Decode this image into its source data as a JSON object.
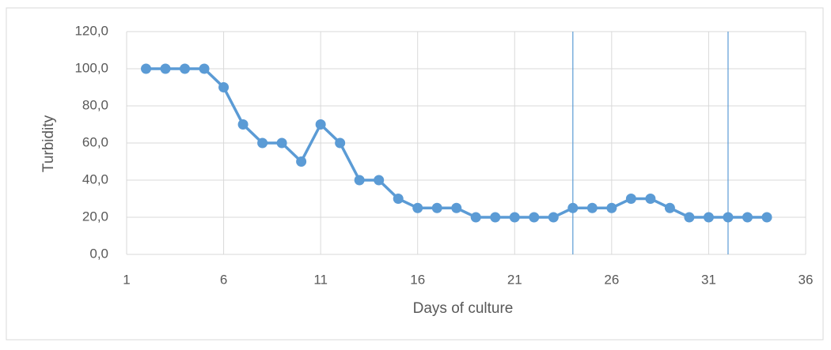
{
  "chart_data": {
    "type": "line",
    "xlabel": "Days of culture",
    "ylabel": "Turbidity",
    "x": [
      2,
      3,
      4,
      5,
      6,
      7,
      8,
      9,
      10,
      11,
      12,
      13,
      14,
      15,
      16,
      17,
      18,
      19,
      20,
      21,
      22,
      23,
      24,
      25,
      26,
      27,
      28,
      29,
      30,
      31,
      32,
      33,
      34
    ],
    "series": [
      {
        "name": "Turbidity",
        "color": "#5b9bd5",
        "values": [
          100,
          100,
          100,
          100,
          90,
          70,
          60,
          60,
          50,
          70,
          60,
          40,
          40,
          30,
          25,
          25,
          25,
          20,
          20,
          20,
          20,
          20,
          25,
          25,
          25,
          30,
          30,
          25,
          20,
          20,
          20,
          20,
          20
        ]
      }
    ],
    "xlim": [
      1,
      36
    ],
    "xticks": [
      1,
      6,
      11,
      16,
      21,
      26,
      31,
      36
    ],
    "ylim": [
      0,
      120
    ],
    "yticks": [
      {
        "value": 0,
        "label": "0,0"
      },
      {
        "value": 20,
        "label": "20,0"
      },
      {
        "value": 40,
        "label": "40,0"
      },
      {
        "value": 60,
        "label": "60,0"
      },
      {
        "value": 80,
        "label": "80,0"
      },
      {
        "value": 100,
        "label": "100,0"
      },
      {
        "value": 120,
        "label": "120,0"
      }
    ],
    "vlines": [
      24,
      32
    ],
    "vline_color": "#5b9bd5",
    "grid": true
  }
}
